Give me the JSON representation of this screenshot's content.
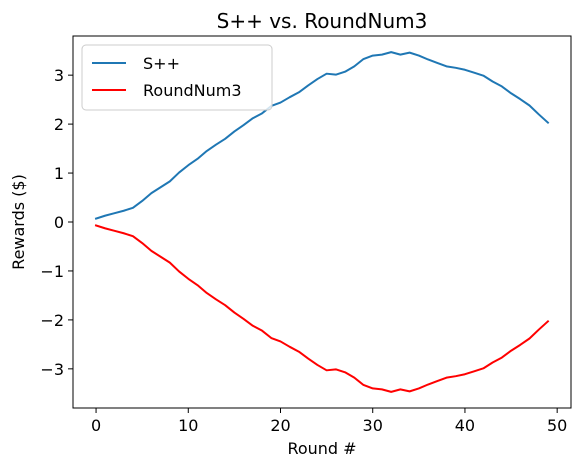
{
  "chart_data": {
    "type": "line",
    "title": "S++ vs. RoundNum3",
    "xlabel": "Round #",
    "ylabel": "Rewards ($)",
    "xlim": [
      -2.5,
      51.5
    ],
    "ylim": [
      -3.8,
      3.8
    ],
    "xticks": [
      0,
      10,
      20,
      30,
      40,
      50
    ],
    "yticks": [
      -3,
      -2,
      -1,
      0,
      1,
      2,
      3
    ],
    "xtick_labels": [
      "0",
      "10",
      "20",
      "30",
      "40",
      "50"
    ],
    "ytick_labels": [
      "−3",
      "−2",
      "−1",
      "0",
      "1",
      "2",
      "3"
    ],
    "grid": false,
    "legend": "top-left",
    "x": [
      0,
      1,
      2,
      3,
      4,
      5,
      6,
      7,
      8,
      9,
      10,
      11,
      12,
      13,
      14,
      15,
      16,
      17,
      18,
      19,
      20,
      21,
      22,
      23,
      24,
      25,
      26,
      27,
      28,
      29,
      30,
      31,
      32,
      33,
      34,
      35,
      36,
      37,
      38,
      39,
      40,
      41,
      42,
      43,
      44,
      45,
      46,
      47,
      48,
      49
    ],
    "series": [
      {
        "name": "S++",
        "color": "#1f77b4",
        "values": [
          0.07,
          0.13,
          0.18,
          0.23,
          0.29,
          0.43,
          0.59,
          0.71,
          0.83,
          1.01,
          1.16,
          1.29,
          1.45,
          1.58,
          1.7,
          1.85,
          1.98,
          2.12,
          2.22,
          2.37,
          2.44,
          2.55,
          2.65,
          2.79,
          2.92,
          3.03,
          3.01,
          3.07,
          3.18,
          3.33,
          3.4,
          3.42,
          3.47,
          3.42,
          3.46,
          3.4,
          3.32,
          3.25,
          3.18,
          3.15,
          3.11,
          3.05,
          2.99,
          2.87,
          2.77,
          2.63,
          2.51,
          2.38,
          2.2,
          2.03
        ]
      },
      {
        "name": "RoundNum3",
        "color": "#ff0000",
        "values": [
          -0.07,
          -0.13,
          -0.18,
          -0.23,
          -0.29,
          -0.43,
          -0.59,
          -0.71,
          -0.83,
          -1.01,
          -1.16,
          -1.29,
          -1.45,
          -1.58,
          -1.7,
          -1.85,
          -1.98,
          -2.12,
          -2.22,
          -2.37,
          -2.44,
          -2.55,
          -2.65,
          -2.79,
          -2.92,
          -3.03,
          -3.01,
          -3.07,
          -3.18,
          -3.33,
          -3.4,
          -3.42,
          -3.47,
          -3.42,
          -3.46,
          -3.4,
          -3.32,
          -3.25,
          -3.18,
          -3.15,
          -3.11,
          -3.05,
          -2.99,
          -2.87,
          -2.77,
          -2.63,
          -2.51,
          -2.38,
          -2.2,
          -2.03
        ]
      }
    ]
  }
}
